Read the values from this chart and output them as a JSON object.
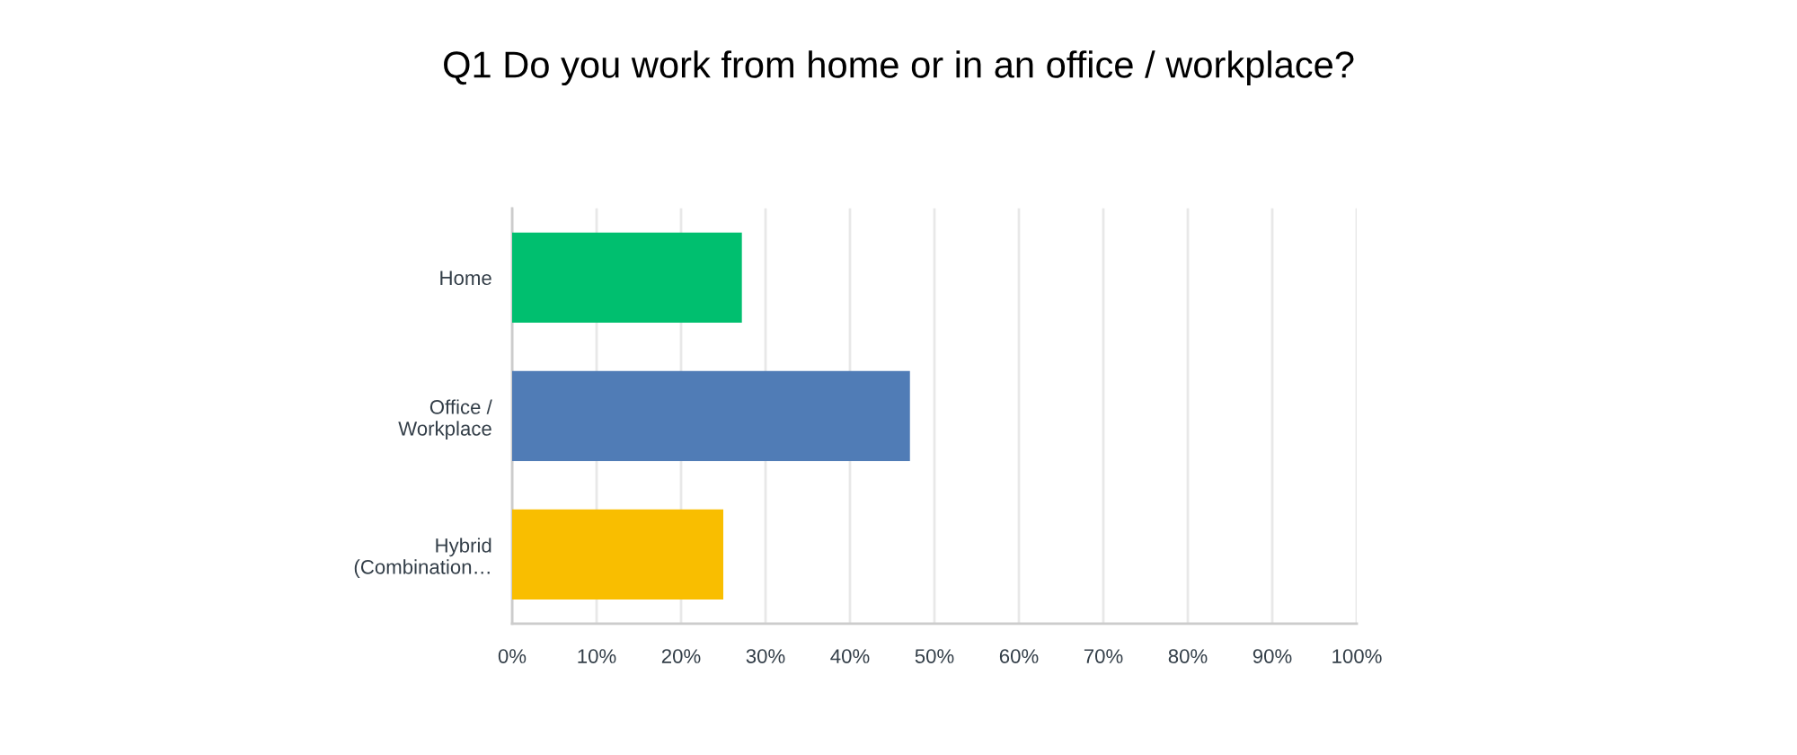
{
  "chart_data": {
    "type": "bar",
    "orientation": "horizontal",
    "title": "Q1 Do you work from home or in an office / workplace?",
    "categories": [
      "Home",
      "Office /\nWorkplace",
      "Hybrid\n(Combination…"
    ],
    "values": [
      27.2,
      47.1,
      25.0
    ],
    "colors": [
      "#00bf6f",
      "#507cb6",
      "#f9be00"
    ],
    "xlim": [
      0,
      100
    ],
    "xticks": [
      {
        "value": 0,
        "label": "0%"
      },
      {
        "value": 10,
        "label": "10%"
      },
      {
        "value": 20,
        "label": "20%"
      },
      {
        "value": 30,
        "label": "30%"
      },
      {
        "value": 40,
        "label": "40%"
      },
      {
        "value": 50,
        "label": "50%"
      },
      {
        "value": 60,
        "label": "60%"
      },
      {
        "value": 70,
        "label": "70%"
      },
      {
        "value": 80,
        "label": "80%"
      },
      {
        "value": 90,
        "label": "90%"
      },
      {
        "value": 100,
        "label": "100%"
      }
    ],
    "grid": "x",
    "legend": false
  }
}
